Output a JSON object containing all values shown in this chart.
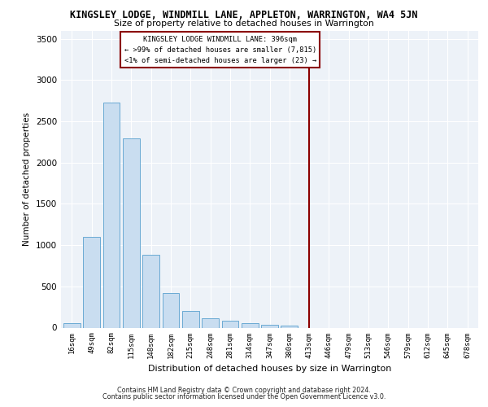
{
  "title": "KINGSLEY LODGE, WINDMILL LANE, APPLETON, WARRINGTON, WA4 5JN",
  "subtitle": "Size of property relative to detached houses in Warrington",
  "xlabel": "Distribution of detached houses by size in Warrington",
  "ylabel": "Number of detached properties",
  "bar_values": [
    50,
    1100,
    2730,
    2290,
    880,
    415,
    205,
    110,
    80,
    55,
    35,
    25,
    0,
    0,
    0,
    0,
    0,
    0,
    0,
    0,
    0
  ],
  "bar_labels": [
    "16sqm",
    "49sqm",
    "82sqm",
    "115sqm",
    "148sqm",
    "182sqm",
    "215sqm",
    "248sqm",
    "281sqm",
    "314sqm",
    "347sqm",
    "380sqm",
    "413sqm",
    "446sqm",
    "479sqm",
    "513sqm",
    "546sqm",
    "579sqm",
    "612sqm",
    "645sqm",
    "678sqm"
  ],
  "bar_color": "#c9ddf0",
  "bar_edge_color": "#6aaad4",
  "vline_x": 12.0,
  "vline_color": "#8b0000",
  "annotation_title": "KINGSLEY LODGE WINDMILL LANE: 396sqm",
  "annotation_line1": "← >99% of detached houses are smaller (7,815)",
  "annotation_line2": "<1% of semi-detached houses are larger (23) →",
  "annotation_box_color": "#8b0000",
  "ylim": [
    0,
    3600
  ],
  "yticks": [
    0,
    500,
    1000,
    1500,
    2000,
    2500,
    3000,
    3500
  ],
  "background_color": "#edf2f8",
  "grid_color": "#ffffff",
  "footer1": "Contains HM Land Registry data © Crown copyright and database right 2024.",
  "footer2": "Contains public sector information licensed under the Open Government Licence v3.0."
}
